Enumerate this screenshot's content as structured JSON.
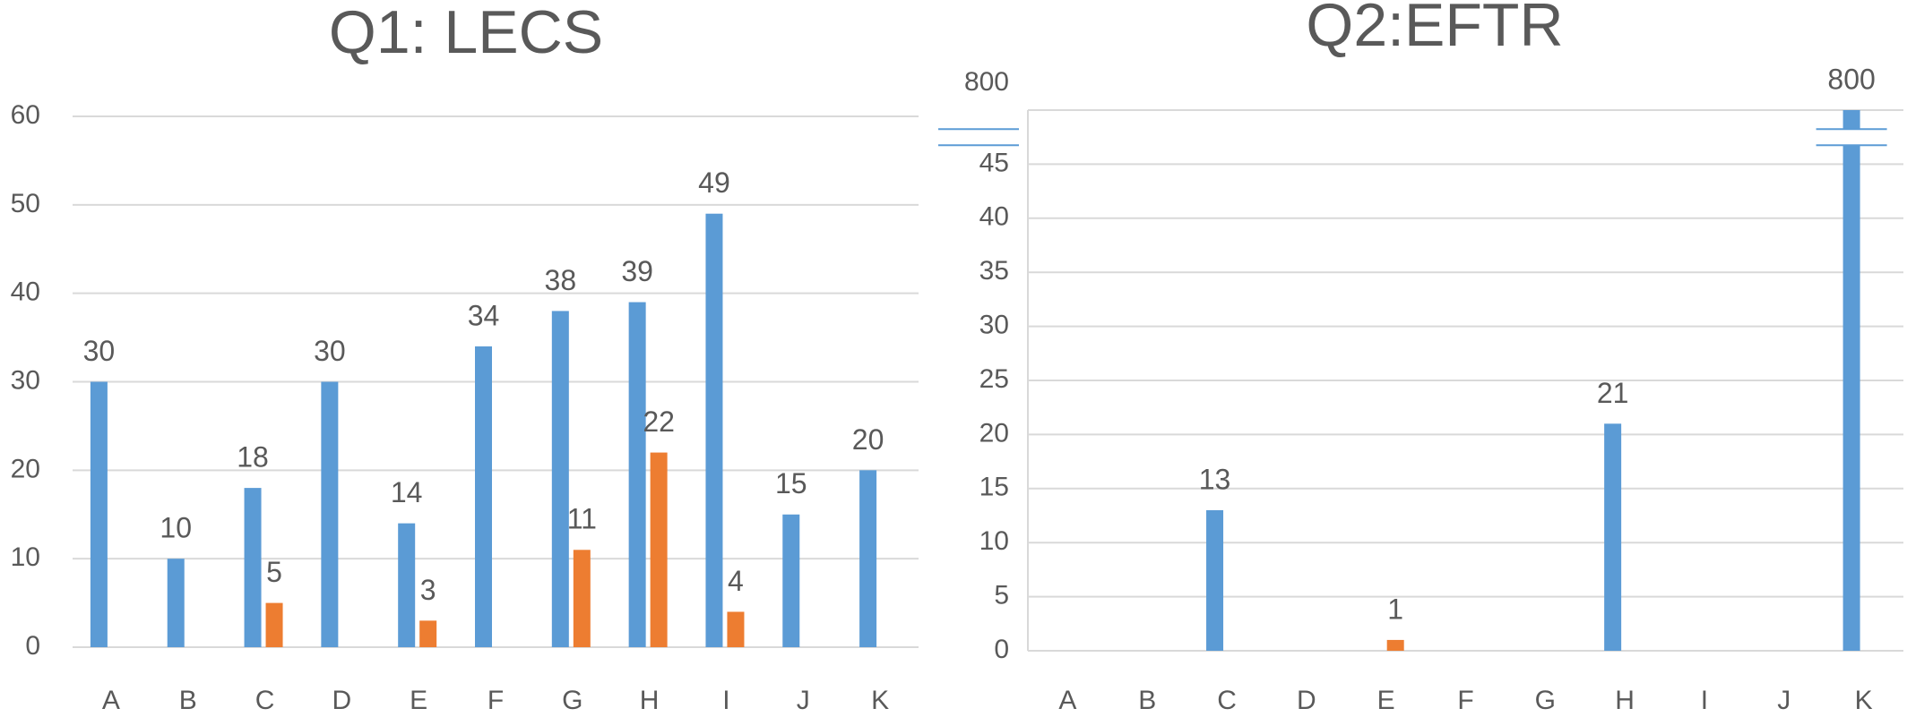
{
  "chart_data": [
    {
      "type": "bar",
      "title": "Q1: LECS",
      "categories": [
        "A",
        "B",
        "C",
        "D",
        "E",
        "F",
        "G",
        "H",
        "I",
        "J",
        "K"
      ],
      "series": [
        {
          "color": "#5b9bd5",
          "values": [
            30,
            10,
            18,
            30,
            14,
            34,
            38,
            39,
            49,
            15,
            20
          ]
        },
        {
          "color": "#ed7d31",
          "values": [
            null,
            null,
            5,
            null,
            3,
            null,
            11,
            22,
            4,
            null,
            null
          ]
        }
      ],
      "ylim": [
        0,
        60
      ],
      "yticks": [
        0,
        10,
        20,
        30,
        40,
        50,
        60
      ],
      "grid": true
    },
    {
      "type": "bar",
      "title": "Q2:EFTR",
      "categories": [
        "A",
        "B",
        "C",
        "D",
        "E",
        "F",
        "G",
        "H",
        "I",
        "J",
        "K"
      ],
      "series": [
        {
          "color": "#5b9bd5",
          "values": [
            null,
            null,
            13,
            null,
            null,
            null,
            null,
            21,
            null,
            null,
            800
          ]
        },
        {
          "color": "#ed7d31",
          "values": [
            null,
            null,
            null,
            null,
            1,
            null,
            null,
            null,
            null,
            null,
            null
          ]
        }
      ],
      "ylim": [
        0,
        50
      ],
      "yticks": [
        0,
        5,
        10,
        15,
        20,
        25,
        30,
        35,
        40,
        45,
        800
      ],
      "grid": true,
      "axis_break": true
    }
  ]
}
